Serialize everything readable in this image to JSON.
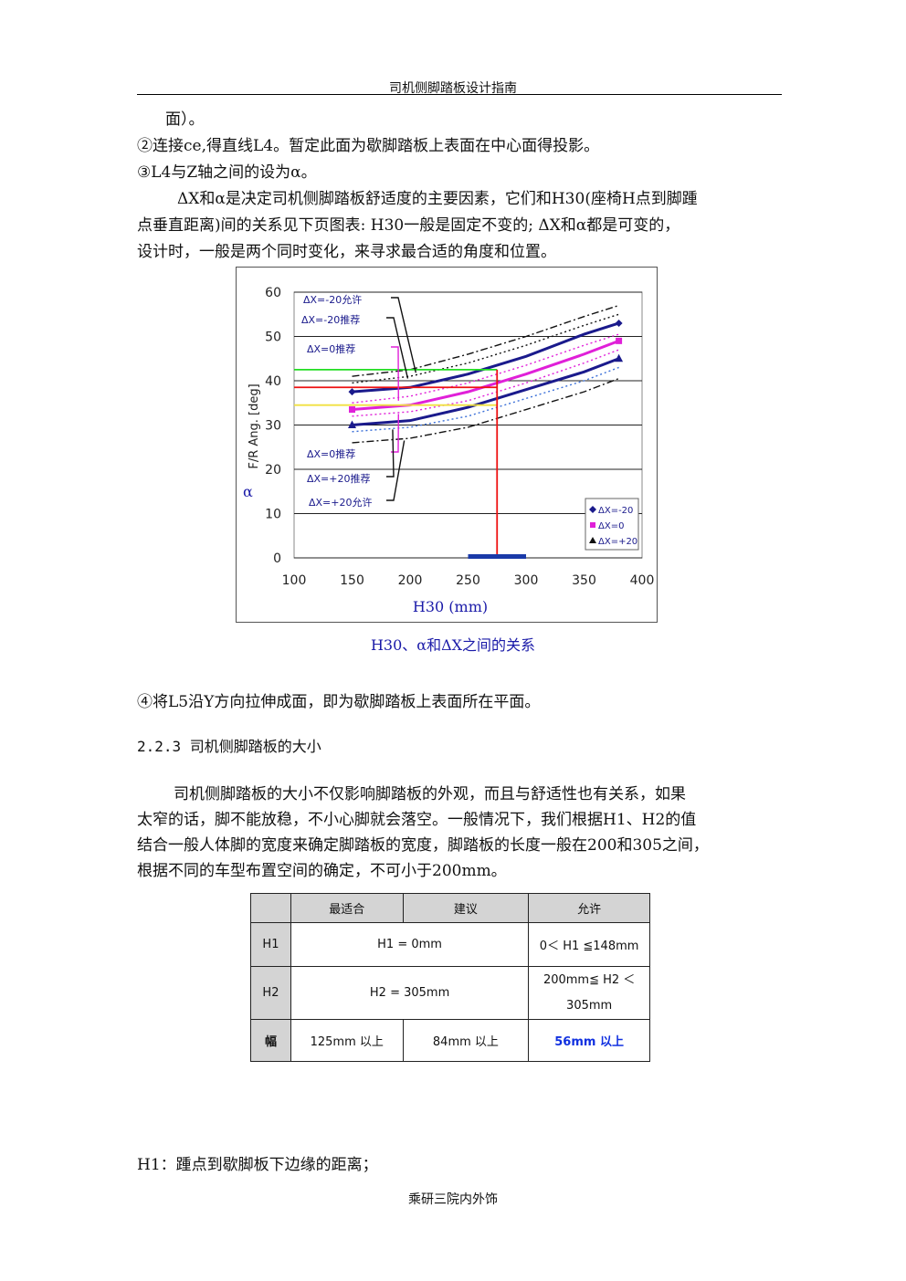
{
  "header": {
    "title": "司机侧脚踏板设计指南"
  },
  "paragraphs": {
    "p1": "面）。",
    "p2": "②连接ce,得直线L4。暂定此面为歇脚踏板上表面在中心面得投影。",
    "p3": "③L4与Z轴之间的设为α。",
    "p4a": "ΔX和α是决定司机侧脚踏板舒适度的主要因素，它们和H30(座椅H点到脚踵",
    "p4b": "点垂直距离)间的关系见下页图表: H30一般是固定不变的; ΔX和α都是可变的，",
    "p4c": "设计时，一般是两个同时变化，来寻求最合适的角度和位置。",
    "p5": "④将L5沿Y方向拉伸成面，即为歇脚踏板上表面所在平面。",
    "section": "2.2.3 司机侧脚踏板的大小",
    "p6a": "司机侧脚踏板的大小不仅影响脚踏板的外观，而且与舒适性也有关系，如果",
    "p6b": "太窄的话，脚不能放稳，不小心脚就会落空。一般情况下，我们根据H1、H2的值",
    "p6c": "结合一般人体脚的宽度来确定脚踏板的宽度，脚踏板的长度一般在200和305之间，",
    "p6d": "根据不同的车型布置空间的确定，不可小于200mm。",
    "p7": "H1：踵点到歇脚板下边缘的距离；"
  },
  "figure_caption": "H30、α和ΔX之间的关系",
  "chart_data": {
    "type": "line",
    "xlabel": "H30 (mm)",
    "ylabel": "F/R Ang. [deg]",
    "ylabel_symbol": "α",
    "xlim": [
      100,
      400
    ],
    "ylim": [
      0,
      60
    ],
    "xticks": [
      "100",
      "150",
      "200",
      "250",
      "300",
      "350",
      "400"
    ],
    "yticks": [
      "0",
      "10",
      "20",
      "30",
      "40",
      "50",
      "60"
    ],
    "grid": "horizontal",
    "legend_position": "bottom-right",
    "legend": [
      "ΔX=-20",
      "ΔX=0",
      "ΔX=+20"
    ],
    "x": [
      150,
      200,
      250,
      300,
      350,
      380
    ],
    "series": [
      {
        "name": "ΔX=-20",
        "style": "solid",
        "color": "#1a1a8c",
        "values": [
          37.5,
          38.5,
          41.5,
          45.5,
          50.5,
          53
        ]
      },
      {
        "name": "ΔX=-20允许",
        "style": "dashdot",
        "color": "#111111",
        "values": [
          41,
          42.5,
          46,
          50,
          54.5,
          57
        ]
      },
      {
        "name": "ΔX=-20推荐",
        "style": "dotted",
        "color": "#111111",
        "values": [
          39.5,
          41,
          44,
          48,
          52.5,
          55
        ]
      },
      {
        "name": "ΔX=0",
        "style": "solid",
        "color": "#e020d8",
        "values": [
          33.5,
          34.5,
          37.5,
          41.5,
          46,
          49
        ]
      },
      {
        "name": "ΔX=0推荐上",
        "style": "dotted",
        "color": "#e020d8",
        "values": [
          35,
          36.5,
          39.5,
          43.5,
          48,
          50.5
        ]
      },
      {
        "name": "ΔX=0推荐下",
        "style": "dotted",
        "color": "#e020d8",
        "values": [
          32,
          33,
          35.5,
          39.5,
          44,
          47
        ]
      },
      {
        "name": "ΔX=+20",
        "style": "solid",
        "color": "#1a1a8c",
        "values": [
          30,
          31,
          34,
          38,
          42,
          45
        ]
      },
      {
        "name": "ΔX=+20推荐",
        "style": "dotted",
        "color": "#3a6fd8",
        "values": [
          28.5,
          29.5,
          32,
          36,
          40,
          43
        ]
      },
      {
        "name": "ΔX=+20允许",
        "style": "dashdot",
        "color": "#111111",
        "values": [
          26,
          27,
          29.5,
          33.5,
          37.5,
          40.5
        ]
      }
    ],
    "markers": [
      {
        "series": "ΔX=-20",
        "shape": "diamond",
        "color": "#1a1a8c"
      },
      {
        "series": "ΔX=0",
        "shape": "square",
        "color": "#e020d8"
      },
      {
        "series": "ΔX=+20",
        "shape": "triangle",
        "color": "#1a1a8c"
      }
    ],
    "reference_lines": [
      {
        "orientation": "horizontal",
        "y": 42.5,
        "x_from": 100,
        "x_to": 275,
        "color": "#22dd22"
      },
      {
        "orientation": "horizontal",
        "y": 38.5,
        "x_from": 100,
        "x_to": 275,
        "color": "#ee1111"
      },
      {
        "orientation": "horizontal",
        "y": 34.5,
        "x_from": 100,
        "x_to": 275,
        "color": "#f0e040"
      },
      {
        "orientation": "vertical",
        "x": 275,
        "y_from": 0,
        "y_to": 42.5,
        "color": "#ee1111"
      }
    ],
    "range_bar": {
      "x_from": 250,
      "x_to": 300,
      "y": 0,
      "color": "#1a3aa8"
    },
    "annotations": [
      "ΔX=-20允许",
      "ΔX=-20推荐",
      "ΔX=0推荐",
      "ΔX=0推荐",
      "ΔX=+20推荐",
      "ΔX=+20允许"
    ]
  },
  "table": {
    "headers": [
      "",
      "最适合",
      "建议",
      "允许"
    ],
    "row_h1": {
      "label": "H1",
      "recommended": "H1 = 0mm",
      "allowed": "0＜ H1 ≦148mm"
    },
    "row_h2": {
      "label": "H2",
      "recommended": "H2 = 305mm",
      "allowed_l1": "200mm≦ H2 ＜",
      "allowed_l2": "305mm"
    },
    "row_width": {
      "label": "幅",
      "best": "125mm 以上",
      "suggest": "84mm 以上",
      "allowed": "56mm 以上"
    }
  },
  "footer": {
    "text": "乘研三院内外饰"
  }
}
